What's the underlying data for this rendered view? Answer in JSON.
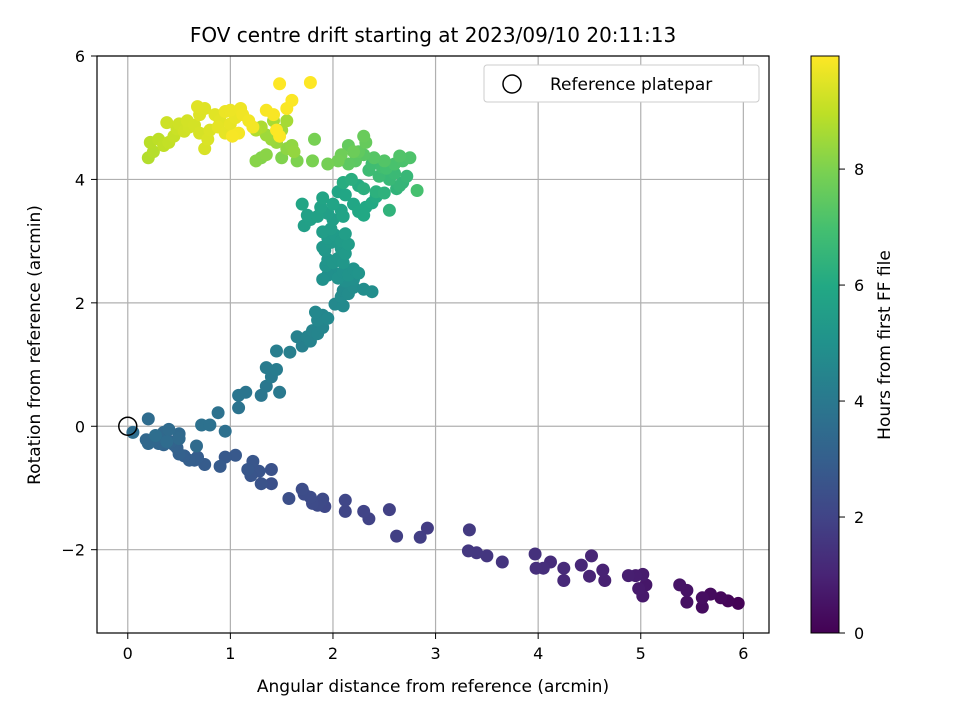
{
  "chart_data": {
    "type": "scatter",
    "title": "FOV centre drift starting at 2023/09/10 20:11:13",
    "xlabel": "Angular distance from reference (arcmin)",
    "ylabel": "Rotation from reference (arcmin)",
    "xlim": [
      -0.3,
      6.25
    ],
    "ylim": [
      -3.35,
      6.0
    ],
    "xticks": [
      0,
      1,
      2,
      3,
      4,
      5,
      6
    ],
    "yticks": [
      -2,
      0,
      2,
      4,
      6
    ],
    "xtick_labels": [
      "0",
      "1",
      "2",
      "3",
      "4",
      "5",
      "6"
    ],
    "ytick_labels": [
      "−2",
      "0",
      "2",
      "4",
      "6"
    ],
    "grid": true,
    "colormap": "viridis",
    "colorbar": {
      "label": "Hours from first FF file",
      "range": [
        0,
        9.95
      ],
      "ticks": [
        0,
        2,
        4,
        6,
        8
      ],
      "tick_labels": [
        "0",
        "2",
        "4",
        "6",
        "8"
      ]
    },
    "legend": {
      "position": "top-right",
      "entries": [
        {
          "label": "Reference platepar",
          "marker": "open-circle"
        }
      ]
    },
    "reference_point": {
      "x": 0,
      "y": 0
    },
    "points": [
      {
        "x": 5.95,
        "y": -2.87,
        "h": 0.05
      },
      {
        "x": 5.85,
        "y": -2.83,
        "h": 0.12
      },
      {
        "x": 5.78,
        "y": -2.78,
        "h": 0.2
      },
      {
        "x": 5.68,
        "y": -2.72,
        "h": 0.28
      },
      {
        "x": 5.6,
        "y": -2.93,
        "h": 0.32
      },
      {
        "x": 5.6,
        "y": -2.78,
        "h": 0.38
      },
      {
        "x": 5.45,
        "y": -2.85,
        "h": 0.45
      },
      {
        "x": 5.45,
        "y": -2.66,
        "h": 0.5
      },
      {
        "x": 5.38,
        "y": -2.57,
        "h": 0.55
      },
      {
        "x": 5.05,
        "y": -2.57,
        "h": 0.62
      },
      {
        "x": 5.02,
        "y": -2.75,
        "h": 0.68
      },
      {
        "x": 4.98,
        "y": -2.63,
        "h": 0.72
      },
      {
        "x": 5.02,
        "y": -2.4,
        "h": 0.76
      },
      {
        "x": 4.95,
        "y": -2.42,
        "h": 0.8
      },
      {
        "x": 4.88,
        "y": -2.42,
        "h": 0.85
      },
      {
        "x": 4.65,
        "y": -2.5,
        "h": 0.9
      },
      {
        "x": 4.63,
        "y": -2.33,
        "h": 0.95
      },
      {
        "x": 4.5,
        "y": -2.43,
        "h": 1.0
      },
      {
        "x": 4.52,
        "y": -2.1,
        "h": 1.05
      },
      {
        "x": 4.42,
        "y": -2.25,
        "h": 1.1
      },
      {
        "x": 4.25,
        "y": -2.5,
        "h": 1.15
      },
      {
        "x": 4.25,
        "y": -2.3,
        "h": 1.2
      },
      {
        "x": 4.12,
        "y": -2.2,
        "h": 1.25
      },
      {
        "x": 4.05,
        "y": -2.3,
        "h": 1.3
      },
      {
        "x": 3.98,
        "y": -2.3,
        "h": 1.35
      },
      {
        "x": 3.97,
        "y": -2.07,
        "h": 1.4
      },
      {
        "x": 3.65,
        "y": -2.2,
        "h": 1.5
      },
      {
        "x": 3.5,
        "y": -2.1,
        "h": 1.55
      },
      {
        "x": 3.4,
        "y": -2.05,
        "h": 1.6
      },
      {
        "x": 3.32,
        "y": -2.02,
        "h": 1.62
      },
      {
        "x": 3.33,
        "y": -1.68,
        "h": 1.68
      },
      {
        "x": 2.92,
        "y": -1.65,
        "h": 1.75
      },
      {
        "x": 2.85,
        "y": -1.8,
        "h": 1.8
      },
      {
        "x": 2.62,
        "y": -1.78,
        "h": 1.85
      },
      {
        "x": 2.55,
        "y": -1.35,
        "h": 1.9
      },
      {
        "x": 2.35,
        "y": -1.5,
        "h": 1.95
      },
      {
        "x": 2.3,
        "y": -1.38,
        "h": 2.0
      },
      {
        "x": 2.12,
        "y": -1.38,
        "h": 2.05
      },
      {
        "x": 2.12,
        "y": -1.2,
        "h": 2.1
      },
      {
        "x": 1.92,
        "y": -1.3,
        "h": 2.15
      },
      {
        "x": 1.9,
        "y": -1.18,
        "h": 2.2
      },
      {
        "x": 1.85,
        "y": -1.28,
        "h": 2.22
      },
      {
        "x": 1.8,
        "y": -1.25,
        "h": 2.25
      },
      {
        "x": 1.78,
        "y": -1.15,
        "h": 2.28
      },
      {
        "x": 1.72,
        "y": -1.1,
        "h": 2.3
      },
      {
        "x": 1.7,
        "y": -1.02,
        "h": 2.33
      },
      {
        "x": 1.57,
        "y": -1.17,
        "h": 2.4
      },
      {
        "x": 1.4,
        "y": -0.93,
        "h": 2.45
      },
      {
        "x": 1.4,
        "y": -0.7,
        "h": 2.5
      },
      {
        "x": 1.3,
        "y": -0.93,
        "h": 2.55
      },
      {
        "x": 1.28,
        "y": -0.73,
        "h": 2.6
      },
      {
        "x": 1.2,
        "y": -0.8,
        "h": 2.62
      },
      {
        "x": 1.22,
        "y": -0.57,
        "h": 2.65
      },
      {
        "x": 1.17,
        "y": -0.7,
        "h": 2.7
      },
      {
        "x": 1.05,
        "y": -0.47,
        "h": 2.75
      },
      {
        "x": 0.95,
        "y": -0.5,
        "h": 2.78
      },
      {
        "x": 0.9,
        "y": -0.65,
        "h": 2.82
      },
      {
        "x": 0.75,
        "y": -0.62,
        "h": 2.88
      },
      {
        "x": 0.68,
        "y": -0.5,
        "h": 2.92
      },
      {
        "x": 0.65,
        "y": -0.55,
        "h": 2.95
      },
      {
        "x": 0.6,
        "y": -0.55,
        "h": 2.98
      },
      {
        "x": 0.55,
        "y": -0.48,
        "h": 3.0
      },
      {
        "x": 0.5,
        "y": -0.45,
        "h": 3.05
      },
      {
        "x": 0.48,
        "y": -0.35,
        "h": 3.1
      },
      {
        "x": 0.45,
        "y": -0.3,
        "h": 3.15
      },
      {
        "x": 0.42,
        "y": -0.25,
        "h": 3.18
      },
      {
        "x": 0.35,
        "y": -0.3,
        "h": 3.2
      },
      {
        "x": 0.32,
        "y": -0.2,
        "h": 3.25
      },
      {
        "x": 0.3,
        "y": -0.28,
        "h": 3.28
      },
      {
        "x": 0.27,
        "y": -0.2,
        "h": 3.3
      },
      {
        "x": 0.2,
        "y": -0.28,
        "h": 3.33
      },
      {
        "x": 0.18,
        "y": -0.22,
        "h": 3.35
      },
      {
        "x": 0.35,
        "y": -0.1,
        "h": 3.38
      },
      {
        "x": 0.5,
        "y": -0.12,
        "h": 3.4
      },
      {
        "x": 0.5,
        "y": -0.2,
        "h": 3.42
      },
      {
        "x": 0.67,
        "y": -0.32,
        "h": 3.45
      },
      {
        "x": 0.4,
        "y": -0.05,
        "h": 3.48
      },
      {
        "x": 0.2,
        "y": 0.12,
        "h": 3.52
      },
      {
        "x": 0.05,
        "y": -0.1,
        "h": 3.55
      },
      {
        "x": 0.38,
        "y": -0.25,
        "h": 3.5
      },
      {
        "x": 0.27,
        "y": -0.15,
        "h": 3.6
      },
      {
        "x": 0.95,
        "y": -0.08,
        "h": 3.65
      },
      {
        "x": 0.72,
        "y": 0.02,
        "h": 3.7
      },
      {
        "x": 0.8,
        "y": 0.02,
        "h": 3.72
      },
      {
        "x": 0.88,
        "y": 0.22,
        "h": 3.75
      },
      {
        "x": 1.08,
        "y": 0.3,
        "h": 3.8
      },
      {
        "x": 1.08,
        "y": 0.5,
        "h": 3.85
      },
      {
        "x": 1.15,
        "y": 0.55,
        "h": 3.88
      },
      {
        "x": 1.3,
        "y": 0.5,
        "h": 3.92
      },
      {
        "x": 1.35,
        "y": 0.65,
        "h": 3.95
      },
      {
        "x": 1.48,
        "y": 0.55,
        "h": 4.0
      },
      {
        "x": 1.4,
        "y": 0.8,
        "h": 4.05
      },
      {
        "x": 1.35,
        "y": 0.95,
        "h": 4.1
      },
      {
        "x": 1.45,
        "y": 0.92,
        "h": 4.15
      },
      {
        "x": 1.45,
        "y": 1.22,
        "h": 4.2
      },
      {
        "x": 1.58,
        "y": 1.2,
        "h": 4.25
      },
      {
        "x": 1.7,
        "y": 1.3,
        "h": 4.3
      },
      {
        "x": 1.65,
        "y": 1.45,
        "h": 4.35
      },
      {
        "x": 1.75,
        "y": 1.45,
        "h": 4.4
      },
      {
        "x": 1.78,
        "y": 1.38,
        "h": 4.42
      },
      {
        "x": 1.8,
        "y": 1.55,
        "h": 4.45
      },
      {
        "x": 1.85,
        "y": 1.5,
        "h": 4.48
      },
      {
        "x": 1.9,
        "y": 1.6,
        "h": 4.5
      },
      {
        "x": 1.9,
        "y": 1.8,
        "h": 4.55
      },
      {
        "x": 1.85,
        "y": 1.72,
        "h": 4.58
      },
      {
        "x": 1.83,
        "y": 1.85,
        "h": 4.6
      },
      {
        "x": 1.95,
        "y": 1.75,
        "h": 4.62
      },
      {
        "x": 2.02,
        "y": 1.98,
        "h": 4.65
      },
      {
        "x": 2.1,
        "y": 1.95,
        "h": 4.7
      },
      {
        "x": 2.08,
        "y": 2.1,
        "h": 4.72
      },
      {
        "x": 2.1,
        "y": 2.2,
        "h": 4.75
      },
      {
        "x": 2.15,
        "y": 2.15,
        "h": 4.78
      },
      {
        "x": 2.2,
        "y": 2.25,
        "h": 4.8
      },
      {
        "x": 2.3,
        "y": 2.22,
        "h": 4.82
      },
      {
        "x": 2.38,
        "y": 2.18,
        "h": 4.85
      },
      {
        "x": 2.12,
        "y": 2.35,
        "h": 4.88
      },
      {
        "x": 2.2,
        "y": 2.38,
        "h": 4.9
      },
      {
        "x": 2.0,
        "y": 2.5,
        "h": 4.92
      },
      {
        "x": 1.95,
        "y": 2.45,
        "h": 4.95
      },
      {
        "x": 1.9,
        "y": 2.38,
        "h": 4.98
      },
      {
        "x": 2.05,
        "y": 2.4,
        "h": 5.0
      },
      {
        "x": 2.1,
        "y": 2.5,
        "h": 5.02
      },
      {
        "x": 2.15,
        "y": 2.45,
        "h": 5.05
      },
      {
        "x": 2.2,
        "y": 2.55,
        "h": 5.08
      },
      {
        "x": 2.25,
        "y": 2.48,
        "h": 5.1
      },
      {
        "x": 1.93,
        "y": 2.6,
        "h": 5.12
      },
      {
        "x": 1.95,
        "y": 2.7,
        "h": 5.15
      },
      {
        "x": 2.0,
        "y": 2.65,
        "h": 5.18
      },
      {
        "x": 2.05,
        "y": 2.72,
        "h": 5.2
      },
      {
        "x": 2.1,
        "y": 2.65,
        "h": 5.22
      },
      {
        "x": 1.92,
        "y": 2.85,
        "h": 5.25
      },
      {
        "x": 1.9,
        "y": 2.9,
        "h": 5.28
      },
      {
        "x": 1.98,
        "y": 2.98,
        "h": 5.3
      },
      {
        "x": 2.08,
        "y": 2.88,
        "h": 5.32
      },
      {
        "x": 2.12,
        "y": 2.8,
        "h": 5.35
      },
      {
        "x": 1.95,
        "y": 3.05,
        "h": 5.38
      },
      {
        "x": 2.02,
        "y": 3.1,
        "h": 5.4
      },
      {
        "x": 2.08,
        "y": 3.0,
        "h": 5.42
      },
      {
        "x": 2.15,
        "y": 2.95,
        "h": 5.45
      },
      {
        "x": 1.9,
        "y": 3.15,
        "h": 5.48
      },
      {
        "x": 1.98,
        "y": 3.2,
        "h": 5.5
      },
      {
        "x": 2.12,
        "y": 3.12,
        "h": 5.52
      },
      {
        "x": 2.0,
        "y": 3.35,
        "h": 5.55
      },
      {
        "x": 1.95,
        "y": 3.45,
        "h": 5.58
      },
      {
        "x": 1.72,
        "y": 3.25,
        "h": 5.6
      },
      {
        "x": 1.78,
        "y": 3.35,
        "h": 5.62
      },
      {
        "x": 1.75,
        "y": 3.42,
        "h": 5.65
      },
      {
        "x": 1.85,
        "y": 3.4,
        "h": 5.68
      },
      {
        "x": 1.88,
        "y": 3.55,
        "h": 5.7
      },
      {
        "x": 2.08,
        "y": 3.5,
        "h": 5.72
      },
      {
        "x": 2.1,
        "y": 3.4,
        "h": 5.75
      },
      {
        "x": 2.0,
        "y": 3.6,
        "h": 5.78
      },
      {
        "x": 1.9,
        "y": 3.7,
        "h": 5.8
      },
      {
        "x": 1.7,
        "y": 3.6,
        "h": 5.82
      },
      {
        "x": 2.05,
        "y": 3.8,
        "h": 5.85
      },
      {
        "x": 2.12,
        "y": 3.75,
        "h": 5.88
      },
      {
        "x": 2.2,
        "y": 3.6,
        "h": 5.9
      },
      {
        "x": 2.25,
        "y": 3.48,
        "h": 5.92
      },
      {
        "x": 2.32,
        "y": 3.55,
        "h": 5.95
      },
      {
        "x": 2.3,
        "y": 3.42,
        "h": 5.98
      },
      {
        "x": 2.38,
        "y": 3.62,
        "h": 6.0
      },
      {
        "x": 2.42,
        "y": 3.72,
        "h": 6.05
      },
      {
        "x": 2.25,
        "y": 3.9,
        "h": 6.1
      },
      {
        "x": 2.1,
        "y": 3.95,
        "h": 6.15
      },
      {
        "x": 2.18,
        "y": 4.0,
        "h": 6.2
      },
      {
        "x": 2.3,
        "y": 3.85,
        "h": 6.25
      },
      {
        "x": 2.42,
        "y": 3.8,
        "h": 6.3
      },
      {
        "x": 2.5,
        "y": 3.78,
        "h": 6.35
      },
      {
        "x": 2.55,
        "y": 3.5,
        "h": 6.4
      },
      {
        "x": 2.62,
        "y": 3.85,
        "h": 6.45
      },
      {
        "x": 2.68,
        "y": 3.95,
        "h": 6.5
      },
      {
        "x": 2.65,
        "y": 3.9,
        "h": 6.55
      },
      {
        "x": 2.72,
        "y": 4.05,
        "h": 6.6
      },
      {
        "x": 2.55,
        "y": 4.0,
        "h": 6.65
      },
      {
        "x": 2.6,
        "y": 4.1,
        "h": 6.7
      },
      {
        "x": 2.45,
        "y": 4.05,
        "h": 6.75
      },
      {
        "x": 2.35,
        "y": 4.15,
        "h": 6.8
      },
      {
        "x": 2.38,
        "y": 4.25,
        "h": 6.85
      },
      {
        "x": 2.48,
        "y": 4.2,
        "h": 6.9
      },
      {
        "x": 2.52,
        "y": 4.18,
        "h": 6.95
      },
      {
        "x": 2.82,
        "y": 3.82,
        "h": 7.0
      },
      {
        "x": 2.6,
        "y": 4.25,
        "h": 7.05
      },
      {
        "x": 2.68,
        "y": 4.3,
        "h": 7.1
      },
      {
        "x": 2.75,
        "y": 4.35,
        "h": 7.15
      },
      {
        "x": 2.65,
        "y": 4.38,
        "h": 7.2
      },
      {
        "x": 2.5,
        "y": 4.3,
        "h": 7.25
      },
      {
        "x": 2.4,
        "y": 4.35,
        "h": 7.3
      },
      {
        "x": 2.3,
        "y": 4.4,
        "h": 7.35
      },
      {
        "x": 2.22,
        "y": 4.3,
        "h": 7.4
      },
      {
        "x": 2.15,
        "y": 4.25,
        "h": 7.45
      },
      {
        "x": 2.25,
        "y": 4.45,
        "h": 7.5
      },
      {
        "x": 2.15,
        "y": 4.55,
        "h": 7.55
      },
      {
        "x": 2.32,
        "y": 4.6,
        "h": 7.6
      },
      {
        "x": 2.3,
        "y": 4.7,
        "h": 7.65
      },
      {
        "x": 2.2,
        "y": 4.45,
        "h": 7.7
      },
      {
        "x": 2.08,
        "y": 4.4,
        "h": 7.75
      },
      {
        "x": 2.05,
        "y": 4.3,
        "h": 7.8
      },
      {
        "x": 1.95,
        "y": 4.25,
        "h": 7.85
      },
      {
        "x": 1.82,
        "y": 4.65,
        "h": 7.9
      },
      {
        "x": 1.8,
        "y": 4.3,
        "h": 7.95
      },
      {
        "x": 1.65,
        "y": 4.3,
        "h": 8.0
      },
      {
        "x": 1.5,
        "y": 4.35,
        "h": 8.05
      },
      {
        "x": 1.3,
        "y": 4.35,
        "h": 8.1
      },
      {
        "x": 1.25,
        "y": 4.3,
        "h": 8.15
      },
      {
        "x": 1.35,
        "y": 4.4,
        "h": 8.2
      },
      {
        "x": 1.55,
        "y": 4.5,
        "h": 8.25
      },
      {
        "x": 1.6,
        "y": 4.55,
        "h": 8.3
      },
      {
        "x": 1.62,
        "y": 4.45,
        "h": 8.35
      },
      {
        "x": 1.45,
        "y": 4.6,
        "h": 8.4
      },
      {
        "x": 1.4,
        "y": 4.65,
        "h": 8.45
      },
      {
        "x": 1.35,
        "y": 4.72,
        "h": 8.5
      },
      {
        "x": 1.5,
        "y": 4.8,
        "h": 8.55
      },
      {
        "x": 1.55,
        "y": 4.95,
        "h": 8.6
      },
      {
        "x": 1.42,
        "y": 4.95,
        "h": 8.65
      },
      {
        "x": 1.3,
        "y": 4.85,
        "h": 8.7
      },
      {
        "x": 1.25,
        "y": 4.8,
        "h": 8.75
      },
      {
        "x": 0.2,
        "y": 4.35,
        "h": 8.8
      },
      {
        "x": 0.25,
        "y": 4.45,
        "h": 8.85
      },
      {
        "x": 0.22,
        "y": 4.6,
        "h": 8.9
      },
      {
        "x": 0.3,
        "y": 4.65,
        "h": 8.95
      },
      {
        "x": 0.35,
        "y": 4.55,
        "h": 9.0
      },
      {
        "x": 0.4,
        "y": 4.6,
        "h": 9.05
      },
      {
        "x": 0.45,
        "y": 4.7,
        "h": 9.1
      },
      {
        "x": 0.48,
        "y": 4.82,
        "h": 9.15
      },
      {
        "x": 0.38,
        "y": 4.92,
        "h": 9.2
      },
      {
        "x": 0.5,
        "y": 4.9,
        "h": 9.22
      },
      {
        "x": 0.55,
        "y": 4.78,
        "h": 9.25
      },
      {
        "x": 0.6,
        "y": 4.85,
        "h": 9.28
      },
      {
        "x": 0.58,
        "y": 4.95,
        "h": 9.3
      },
      {
        "x": 0.65,
        "y": 4.88,
        "h": 9.32
      },
      {
        "x": 0.7,
        "y": 4.75,
        "h": 9.35
      },
      {
        "x": 0.75,
        "y": 4.5,
        "h": 9.38
      },
      {
        "x": 0.78,
        "y": 4.65,
        "h": 9.4
      },
      {
        "x": 0.8,
        "y": 4.8,
        "h": 9.42
      },
      {
        "x": 0.7,
        "y": 5.05,
        "h": 9.45
      },
      {
        "x": 0.75,
        "y": 5.15,
        "h": 9.48
      },
      {
        "x": 0.68,
        "y": 5.18,
        "h": 9.5
      },
      {
        "x": 0.85,
        "y": 5.05,
        "h": 9.52
      },
      {
        "x": 0.9,
        "y": 4.95,
        "h": 9.55
      },
      {
        "x": 0.88,
        "y": 4.85,
        "h": 9.58
      },
      {
        "x": 0.95,
        "y": 4.75,
        "h": 9.6
      },
      {
        "x": 1.0,
        "y": 4.9,
        "h": 9.62
      },
      {
        "x": 1.05,
        "y": 5.0,
        "h": 9.65
      },
      {
        "x": 0.95,
        "y": 5.1,
        "h": 9.68
      },
      {
        "x": 1.0,
        "y": 5.12,
        "h": 9.7
      },
      {
        "x": 1.1,
        "y": 5.15,
        "h": 9.72
      },
      {
        "x": 1.12,
        "y": 5.05,
        "h": 9.75
      },
      {
        "x": 1.18,
        "y": 4.95,
        "h": 9.78
      },
      {
        "x": 1.22,
        "y": 4.85,
        "h": 9.8
      },
      {
        "x": 1.08,
        "y": 4.75,
        "h": 9.82
      },
      {
        "x": 1.02,
        "y": 4.7,
        "h": 9.85
      },
      {
        "x": 1.35,
        "y": 5.12,
        "h": 9.88
      },
      {
        "x": 1.42,
        "y": 5.05,
        "h": 9.88
      },
      {
        "x": 1.55,
        "y": 5.15,
        "h": 9.9
      },
      {
        "x": 1.6,
        "y": 5.28,
        "h": 9.92
      },
      {
        "x": 1.48,
        "y": 4.7,
        "h": 9.93
      },
      {
        "x": 1.45,
        "y": 4.8,
        "h": 9.94
      },
      {
        "x": 1.48,
        "y": 5.55,
        "h": 9.95
      },
      {
        "x": 1.78,
        "y": 5.57,
        "h": 9.95
      }
    ]
  }
}
